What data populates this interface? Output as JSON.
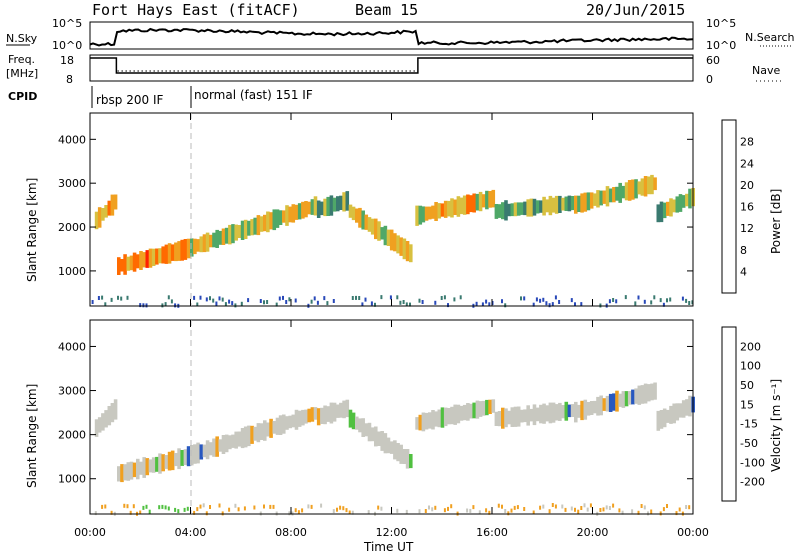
{
  "header": {
    "station": "Fort Hays East (fitACF)",
    "beam": "Beam 15",
    "date": "20/Jun/2015"
  },
  "noise_panel": {
    "left_label": "N.Sky",
    "right_label": "N.Search",
    "tick_top": "10^5",
    "tick_bottom": "10^0"
  },
  "freq_panel": {
    "left_label_line1": "Freq.",
    "left_label_line2": "[MHz]",
    "left_tick_top": "18",
    "left_tick_bottom": "8",
    "right_label": "Nave",
    "right_tick_top": "60",
    "right_tick_bottom": "0"
  },
  "cpid_panel": {
    "label": "CPID",
    "segments": [
      {
        "start_ut": 0.0,
        "text": "rbsp 200 IF"
      },
      {
        "start_ut": 4.0,
        "text": "normal (fast) 151 IF"
      }
    ]
  },
  "chart_data": [
    {
      "type": "heatmap",
      "name": "power",
      "ylabel": "Slant Range [km]",
      "xlabel": "Time UT",
      "xlim_hours": [
        0,
        24
      ],
      "ylim_km": [
        200,
        4600
      ],
      "yticks": [
        1000,
        2000,
        3000,
        4000
      ],
      "xticks": [
        "00:00",
        "04:00",
        "08:00",
        "12:00",
        "16:00",
        "20:00",
        "00:00"
      ],
      "colorbar": {
        "label": "Power [dB]",
        "ticks": [
          "4",
          "8",
          "12",
          "16",
          "20",
          "24",
          "28"
        ],
        "range": [
          0,
          30
        ],
        "colors": [
          "#1a2cff",
          "#2848b8",
          "#3a7a70",
          "#4fa868",
          "#d8c040",
          "#f0a020",
          "#ff6a00",
          "#ff2000"
        ]
      },
      "bands": [
        {
          "t": [
            0.1,
            1.0
          ],
          "r": [
            2100,
            2600
          ],
          "level": 20
        },
        {
          "t": [
            1.0,
            3.8
          ],
          "r": [
            1100,
            1500
          ],
          "level": 24
        },
        {
          "t": [
            3.8,
            9.0
          ],
          "r": [
            1500,
            2500
          ],
          "level": 18
        },
        {
          "t": [
            9.0,
            10.2
          ],
          "r": [
            2400,
            2600
          ],
          "level": 14
        },
        {
          "t": [
            10.2,
            12.7
          ],
          "r": [
            1400,
            2400
          ],
          "level": 18
        },
        {
          "t": [
            12.9,
            16.0
          ],
          "r": [
            2250,
            2650
          ],
          "level": 20
        },
        {
          "t": [
            16.0,
            19.2
          ],
          "r": [
            2350,
            2550
          ],
          "level": 14
        },
        {
          "t": [
            19.2,
            22.5
          ],
          "r": [
            2500,
            3000
          ],
          "level": 18
        },
        {
          "t": [
            22.5,
            24.0
          ],
          "r": [
            2300,
            2700
          ],
          "level": 16
        }
      ]
    },
    {
      "type": "heatmap",
      "name": "velocity",
      "ylabel": "Slant Range [km]",
      "xlabel": "Time UT",
      "xlim_hours": [
        0,
        24
      ],
      "ylim_km": [
        200,
        4600
      ],
      "yticks": [
        1000,
        2000,
        3000,
        4000
      ],
      "xticks": [
        "00:00",
        "04:00",
        "08:00",
        "12:00",
        "16:00",
        "20:00",
        "00:00"
      ],
      "colorbar": {
        "label": "Velocity [m s⁻¹]",
        "ticks": [
          "200",
          "100",
          "50",
          "15",
          "-15",
          "-50",
          "-100",
          "-200"
        ],
        "colors": [
          "#1a2cff",
          "#2858c0",
          "#2f8f5a",
          "#50c040",
          "#c8c8c0",
          "#f0a020",
          "#ff7000",
          "#ff4000",
          "#ff0000"
        ]
      }
    }
  ],
  "x_axis_label": "Time UT",
  "dashed_marker_ut": 4.0
}
